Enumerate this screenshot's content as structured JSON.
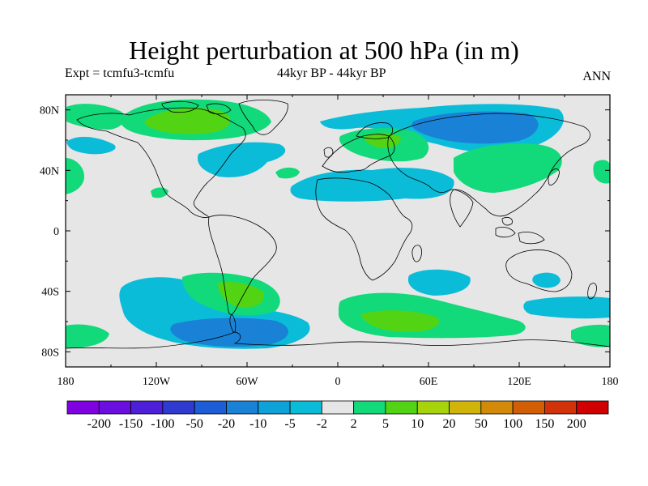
{
  "title": "Height perturbation at 500 hPa (in m)",
  "subtitle_left": "Expt = tcmfu3-tcmfu",
  "subtitle_center": "44kyr BP - 44kyr BP",
  "subtitle_right": "ANN",
  "map": {
    "lat_ticks": [
      "80N",
      "40N",
      "0",
      "40S",
      "80S"
    ],
    "lon_ticks": [
      "180",
      "120W",
      "60W",
      "0",
      "60E",
      "120E",
      "180"
    ],
    "lat_range": [
      -90,
      90
    ],
    "lon_range": [
      -180,
      180
    ],
    "background": "#e6e6e6",
    "coastline_color": "#000000"
  },
  "colorbar": {
    "labels": [
      "-200",
      "-150",
      "-100",
      "-50",
      "-20",
      "-10",
      "-5",
      "-2",
      "2",
      "5",
      "10",
      "20",
      "50",
      "100",
      "150",
      "200"
    ],
    "colors": [
      "#7f00e0",
      "#6a0fe0",
      "#4d1fd8",
      "#2f3ad0",
      "#1d5dd6",
      "#1a82d6",
      "#0ea2d8",
      "#0bbcd8",
      "#e6e6e6",
      "#12d97a",
      "#52d414",
      "#a6d30c",
      "#d1b40a",
      "#d28a08",
      "#d25e06",
      "#d2320a",
      "#d10000"
    ]
  }
}
